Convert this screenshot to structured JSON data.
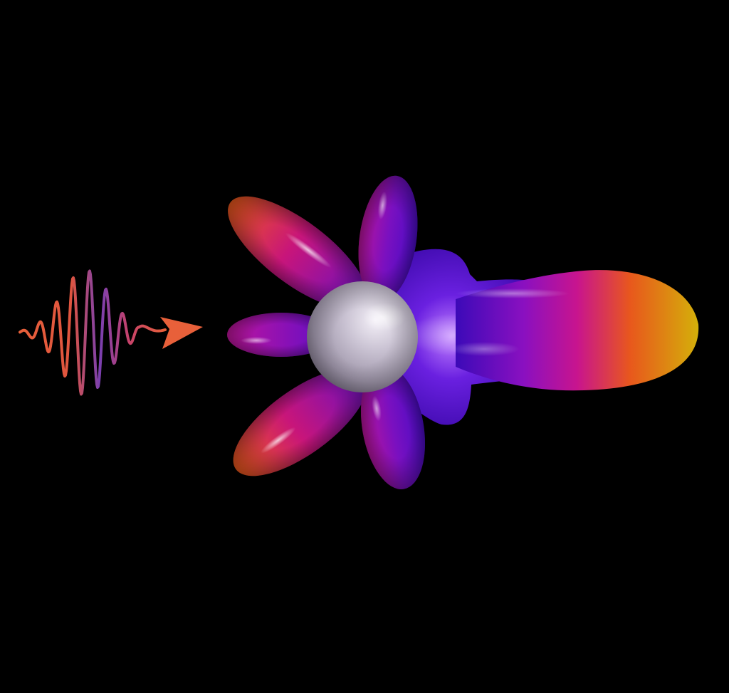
{
  "scene": {
    "background": "#000000",
    "elements": [
      "incident-light-pulse",
      "propagation-arrow",
      "scattering-pattern-lobes",
      "central-sphere"
    ],
    "colors": {
      "pulse_start": "#e8603a",
      "pulse_end": "#7a3fb0",
      "arrow": "#e8603a",
      "lobe_violet": "#5a10c8",
      "lobe_magenta": "#c0159a",
      "lobe_orange": "#ec5a1e",
      "lobe_gold": "#d4a80a",
      "sphere_light": "#f2eef6",
      "sphere_shadow": "#8a8296"
    }
  }
}
